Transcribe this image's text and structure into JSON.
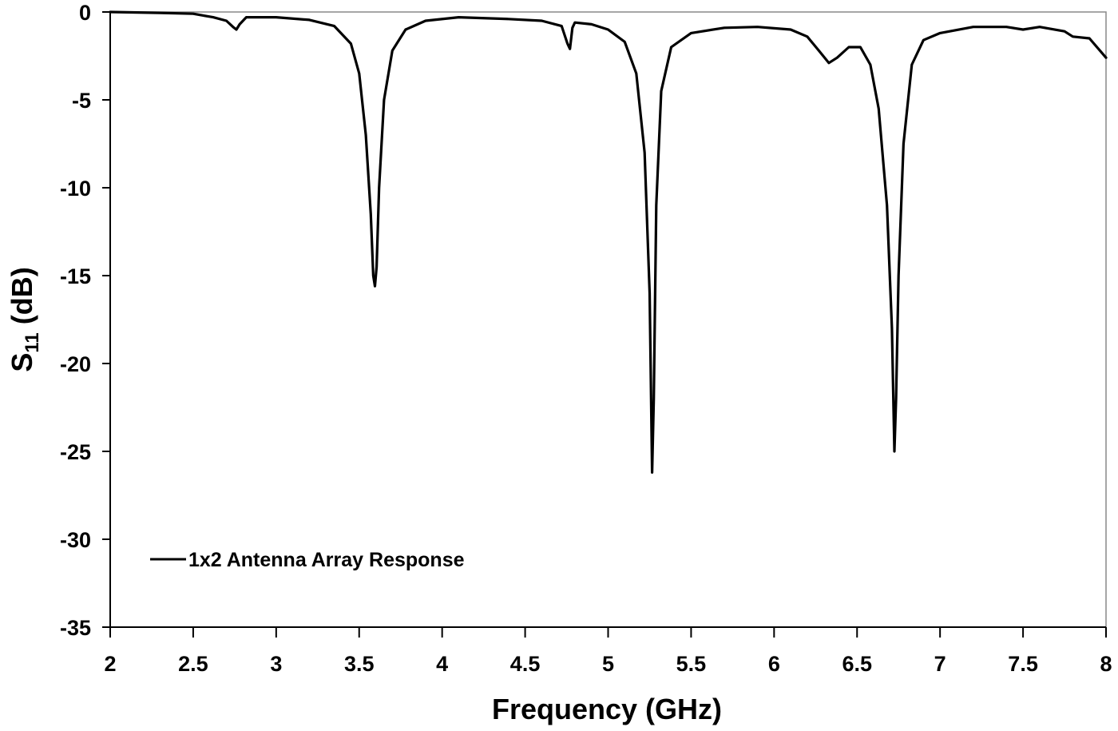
{
  "chart_data": {
    "type": "line",
    "title": "",
    "xlabel": "Frequency (GHz)",
    "ylabel": "S11 (dB)",
    "ylabel_main": "S",
    "ylabel_sub": "11",
    "ylabel_unit": " (dB)",
    "xlim": [
      2,
      8
    ],
    "ylim": [
      -35,
      0
    ],
    "grid": false,
    "legend_position": "lower-left inside plot",
    "x_ticks": [
      "2",
      "2.5",
      "3",
      "3.5",
      "4",
      "4.5",
      "5",
      "5.5",
      "6",
      "6.5",
      "7",
      "7.5",
      "8"
    ],
    "y_ticks": [
      "0",
      "-5",
      "-10",
      "-15",
      "-20",
      "-25",
      "-30",
      "-35"
    ],
    "series": [
      {
        "name": "1x2 Antenna Array Response",
        "color": "#000000",
        "x": [
          2.0,
          2.3,
          2.5,
          2.62,
          2.7,
          2.74,
          2.76,
          2.78,
          2.82,
          3.0,
          3.2,
          3.35,
          3.45,
          3.5,
          3.54,
          3.57,
          3.585,
          3.595,
          3.605,
          3.62,
          3.65,
          3.7,
          3.78,
          3.9,
          4.1,
          4.4,
          4.6,
          4.72,
          4.755,
          4.77,
          4.785,
          4.8,
          4.9,
          5.0,
          5.1,
          5.17,
          5.22,
          5.25,
          5.265,
          5.275,
          5.29,
          5.32,
          5.38,
          5.5,
          5.7,
          5.9,
          6.1,
          6.2,
          6.27,
          6.33,
          6.38,
          6.45,
          6.52,
          6.58,
          6.63,
          6.68,
          6.71,
          6.725,
          6.735,
          6.75,
          6.78,
          6.83,
          6.9,
          7.0,
          7.2,
          7.4,
          7.5,
          7.6,
          7.75,
          7.8,
          7.9,
          8.0
        ],
        "y": [
          0.0,
          -0.05,
          -0.1,
          -0.3,
          -0.5,
          -0.85,
          -1.0,
          -0.7,
          -0.3,
          -0.3,
          -0.45,
          -0.8,
          -1.8,
          -3.5,
          -7.0,
          -11.5,
          -15.0,
          -15.6,
          -14.5,
          -10.0,
          -5.0,
          -2.2,
          -1.0,
          -0.5,
          -0.3,
          -0.4,
          -0.5,
          -0.8,
          -1.8,
          -2.1,
          -0.9,
          -0.6,
          -0.7,
          -1.0,
          -1.7,
          -3.5,
          -8.0,
          -16.0,
          -26.2,
          -22.0,
          -11.0,
          -4.5,
          -2.0,
          -1.2,
          -0.9,
          -0.85,
          -1.0,
          -1.4,
          -2.2,
          -2.9,
          -2.6,
          -2.0,
          -2.0,
          -3.0,
          -5.5,
          -11.0,
          -18.0,
          -25.0,
          -22.0,
          -15.0,
          -7.5,
          -3.0,
          -1.6,
          -1.2,
          -0.85,
          -0.85,
          -1.0,
          -0.85,
          -1.1,
          -1.4,
          -1.5,
          -2.6
        ]
      }
    ]
  }
}
